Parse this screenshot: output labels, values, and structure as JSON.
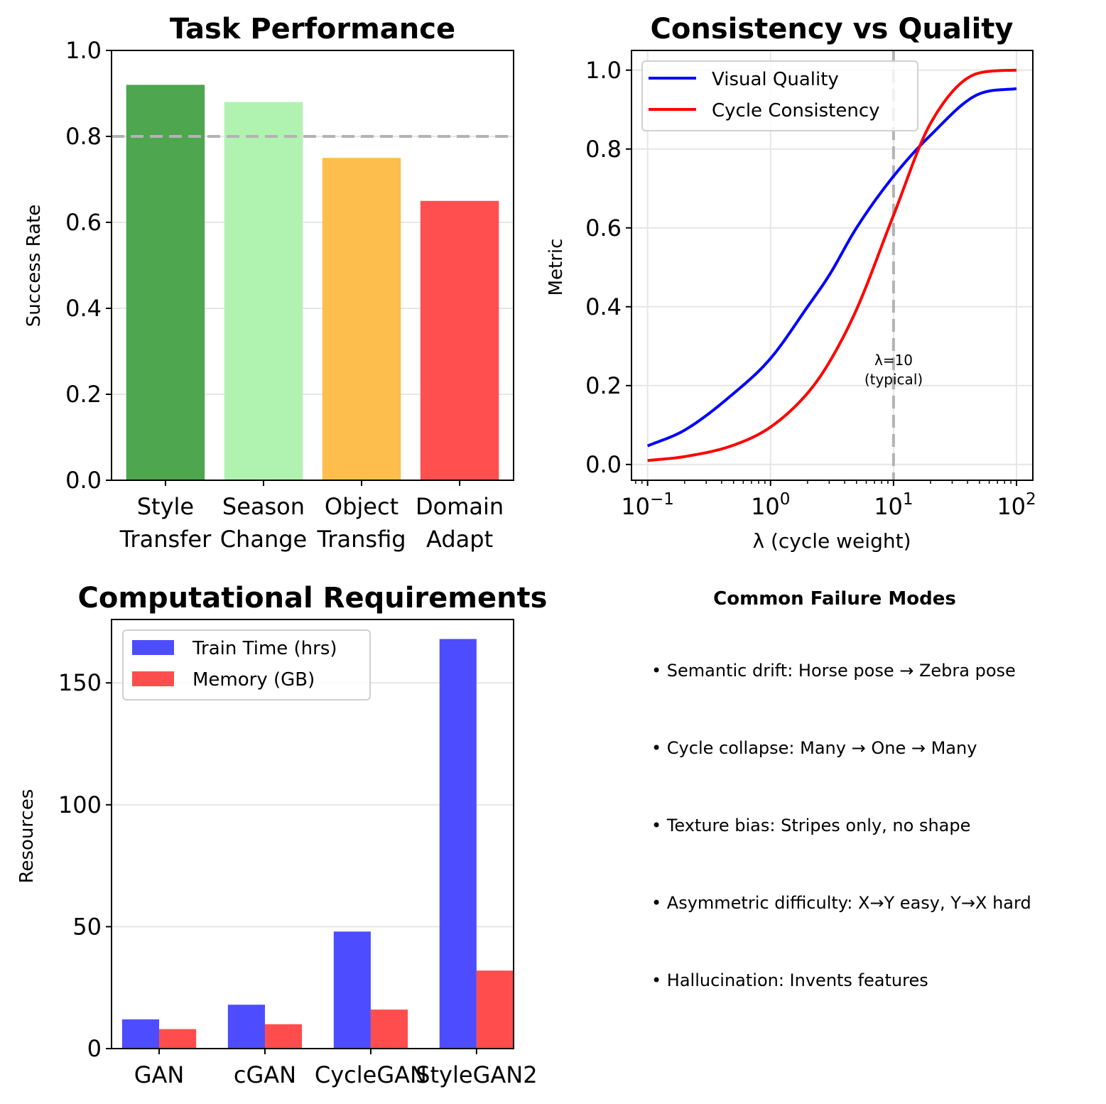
{
  "chart_data": [
    {
      "type": "bar",
      "title": "Task Performance",
      "xlabel": "",
      "ylabel": "Success Rate",
      "ylim": [
        0,
        1.0
      ],
      "yticks": [
        "0.0",
        "0.2",
        "0.4",
        "0.6",
        "0.8",
        "1.0"
      ],
      "categories": [
        [
          "Style",
          "Transfer"
        ],
        [
          "Season",
          "Change"
        ],
        [
          "Object",
          "Transfig"
        ],
        [
          "Domain",
          "Adapt"
        ]
      ],
      "values": [
        0.92,
        0.88,
        0.75,
        0.65
      ],
      "colors": [
        "#4ea64e",
        "#b0f3b0",
        "#fdbe4e",
        "#ff4f4f"
      ],
      "reference_line": {
        "y": 0.8,
        "style": "dashed",
        "color": "#b3b3b3"
      },
      "grid": "y"
    },
    {
      "type": "line",
      "title": "Consistency vs Quality",
      "xlabel": "λ (cycle weight)",
      "ylabel": "Metric",
      "xscale": "log",
      "xlim": [
        0.074,
        135.8
      ],
      "ylim": [
        -0.04,
        1.05
      ],
      "xticks": [
        {
          "base": "10",
          "exp": "−1"
        },
        {
          "base": "10",
          "exp": "0"
        },
        {
          "base": "10",
          "exp": "1"
        },
        {
          "base": "10",
          "exp": "2"
        }
      ],
      "yticks": [
        "0.0",
        "0.2",
        "0.4",
        "0.6",
        "0.8",
        "1.0"
      ],
      "series": [
        {
          "name": "Visual Quality",
          "color": "#0000ff",
          "x": [
            0.1,
            0.2,
            0.5,
            1,
            2,
            3,
            5,
            10,
            20,
            50,
            100
          ],
          "y": [
            0.047,
            0.087,
            0.18,
            0.269,
            0.4,
            0.48,
            0.6,
            0.731,
            0.835,
            0.94,
            0.953
          ]
        },
        {
          "name": "Cycle Consistency",
          "color": "#ff0000",
          "x": [
            0.1,
            0.2,
            0.5,
            1,
            2,
            3,
            5,
            10,
            20,
            50,
            100
          ],
          "y": [
            0.01,
            0.02,
            0.049,
            0.095,
            0.181,
            0.259,
            0.393,
            0.632,
            0.865,
            0.993,
            1.0
          ]
        }
      ],
      "vline": {
        "x": 10,
        "style": "dashed",
        "color": "#b3b3b3"
      },
      "annotation": [
        "λ=10",
        "(typical)"
      ],
      "legend": "upper-left",
      "grid": "both"
    },
    {
      "type": "bar",
      "title": "Computational Requirements",
      "xlabel": "",
      "ylabel": "Resources",
      "ylim": [
        0,
        176
      ],
      "yticks": [
        "0",
        "50",
        "100",
        "150"
      ],
      "categories": [
        "GAN",
        "cGAN",
        "CycleGAN",
        "StyleGAN2"
      ],
      "series": [
        {
          "name": "Train Time (hrs)",
          "color": "#4d4dff",
          "values": [
            12,
            18,
            48,
            168
          ]
        },
        {
          "name": "Memory (GB)",
          "color": "#ff4d4d",
          "values": [
            8,
            10,
            16,
            32
          ]
        }
      ],
      "legend": "upper-left",
      "grid": "y"
    }
  ],
  "failure_modes": {
    "title": "Common Failure Modes",
    "items": [
      "• Semantic drift: Horse pose → Zebra pose",
      "• Cycle collapse: Many → One → Many",
      "• Texture bias: Stripes only, no shape",
      "• Asymmetric difficulty: X→Y easy, Y→X hard",
      "• Hallucination: Invents features"
    ]
  }
}
